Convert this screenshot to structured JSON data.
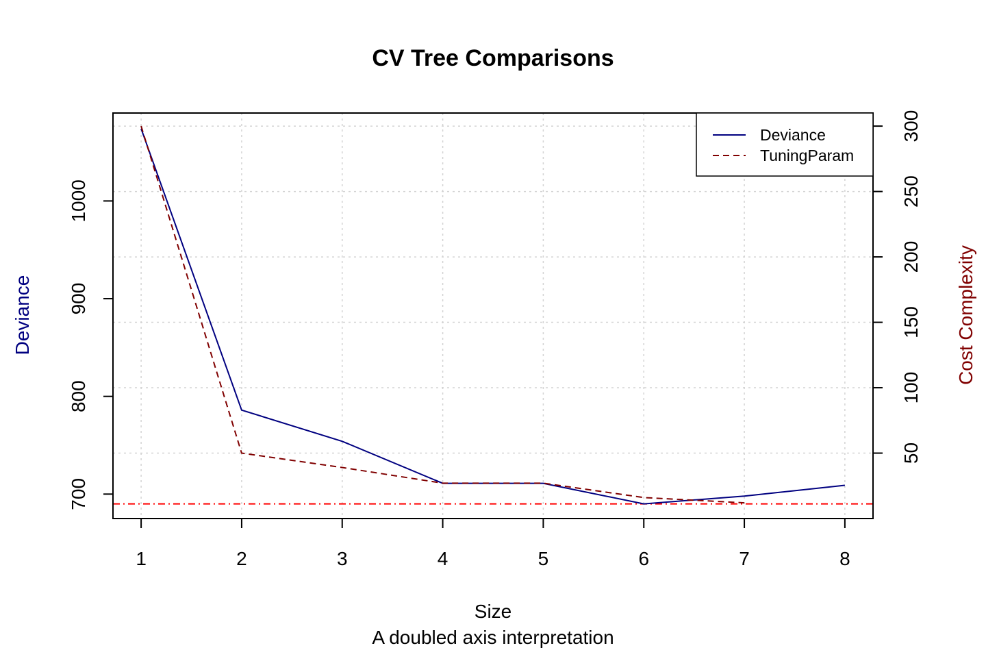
{
  "chart_data": {
    "type": "line",
    "title": "CV Tree Comparisons",
    "xlabel": "Size",
    "subtitle": "A doubled axis interpretation",
    "ylabel_left": "Deviance",
    "ylabel_right": "Cost Complexity",
    "x": [
      1,
      2,
      3,
      4,
      5,
      6,
      7,
      8
    ],
    "xlim": [
      0.72,
      8.28
    ],
    "ylim_left": [
      675,
      1090
    ],
    "ylim_right": [
      0,
      310
    ],
    "xticks": [
      1,
      2,
      3,
      4,
      5,
      6,
      7,
      8
    ],
    "yticks_left": [
      700,
      800,
      900,
      1000
    ],
    "yticks_right": [
      50,
      100,
      150,
      200,
      250,
      300
    ],
    "grid": true,
    "legend_position": "top-right",
    "series": [
      {
        "name": "Deviance",
        "axis": "left",
        "style": "solid",
        "color": "#000080",
        "values": [
          1074,
          786,
          754,
          711,
          711,
          690,
          698,
          709
        ]
      },
      {
        "name": "TuningParam",
        "axis": "right",
        "style": "dashed",
        "color": "#800000",
        "values": [
          300,
          50,
          39,
          27,
          27,
          16,
          12,
          null
        ]
      }
    ],
    "reference_line": {
      "axis": "left",
      "value": 690,
      "style": "dotdash",
      "color": "#ff0000"
    }
  },
  "colors": {
    "axis": "#000000",
    "grid": "#d3d3d3",
    "left_label": "#000080",
    "right_label": "#800000"
  }
}
